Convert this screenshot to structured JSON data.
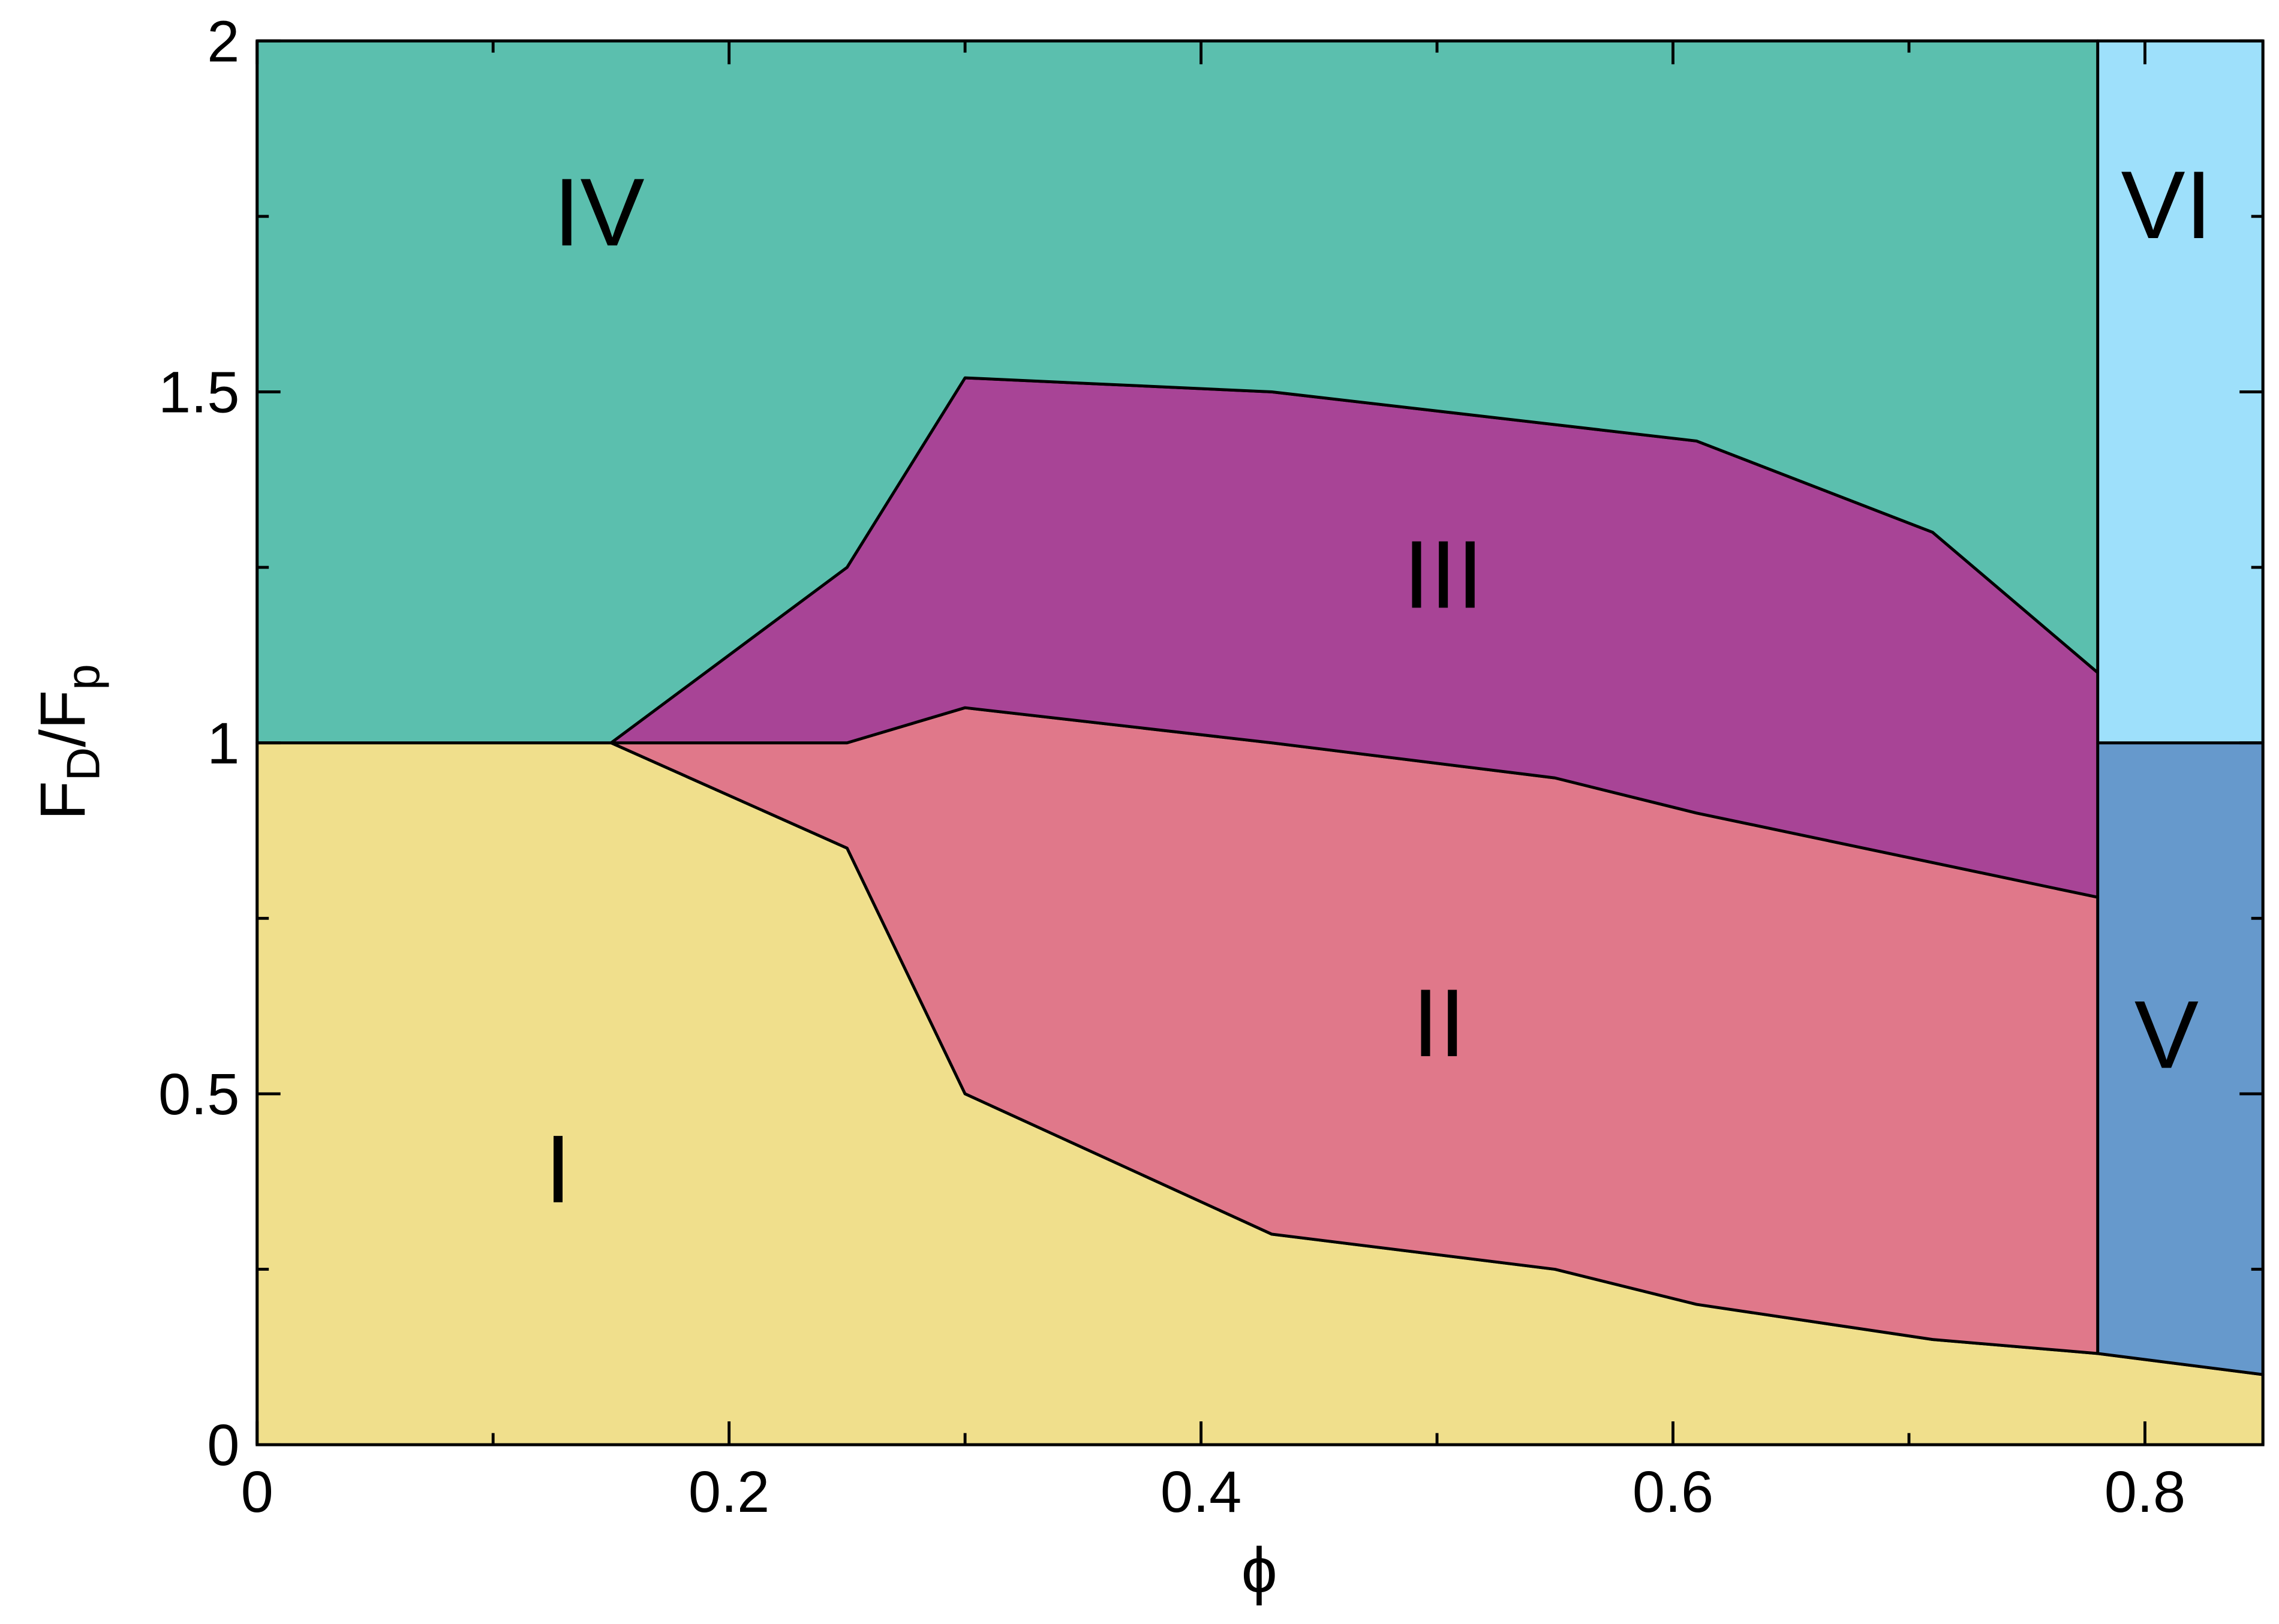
{
  "chart_data": {
    "type": "area",
    "xlabel": "ϕ",
    "ylabel": [
      "F",
      "D",
      "/F",
      "p"
    ],
    "xlim": [
      0,
      0.85
    ],
    "ylim": [
      0,
      2
    ],
    "xticks": [
      0,
      0.2,
      0.4,
      0.6,
      0.8
    ],
    "yticks": [
      0,
      0.5,
      1,
      1.5,
      2
    ],
    "xminorticks": [
      0.1,
      0.3,
      0.5,
      0.7
    ],
    "yminorticks": [
      0.25,
      0.75,
      1.25,
      1.75
    ],
    "series": [
      {
        "name": "I",
        "color": "#f0df8c",
        "x": [
          0,
          0,
          0.15,
          0.25,
          0.3,
          0.43,
          0.55,
          0.61,
          0.71,
          0.78,
          0.85,
          0.85
        ],
        "values": [
          0,
          1,
          1,
          0.85,
          0.5,
          0.3,
          0.25,
          0.2,
          0.15,
          0.13,
          0.1,
          0
        ]
      },
      {
        "name": "II",
        "color": "#e0788a",
        "x": [
          0.15,
          0.25,
          0.3,
          0.43,
          0.55,
          0.61,
          0.78,
          0.78,
          0.71,
          0.61,
          0.55,
          0.43,
          0.3,
          0.25
        ],
        "values": [
          1,
          1,
          1.05,
          1,
          0.95,
          0.9,
          0.78,
          0.13,
          0.15,
          0.2,
          0.25,
          0.3,
          0.5,
          0.85
        ]
      },
      {
        "name": "III",
        "color": "#a84496",
        "x": [
          0.15,
          0.25,
          0.3,
          0.43,
          0.61,
          0.71,
          0.78,
          0.78,
          0.61,
          0.55,
          0.43,
          0.3,
          0.25
        ],
        "values": [
          1,
          1.25,
          1.52,
          1.5,
          1.43,
          1.3,
          1.1,
          0.78,
          0.9,
          0.95,
          1,
          1.05,
          1
        ]
      },
      {
        "name": "IV",
        "color": "#5bbfae",
        "x": [
          0,
          0,
          0.78,
          0.78,
          0.71,
          0.61,
          0.43,
          0.3,
          0.25,
          0.15
        ],
        "values": [
          1,
          2,
          2,
          1.1,
          1.3,
          1.43,
          1.5,
          1.52,
          1.25,
          1
        ]
      },
      {
        "name": "V",
        "color": "#6699cc",
        "x": [
          0.78,
          0.78,
          0.85,
          0.85
        ],
        "values": [
          0.13,
          1,
          1,
          0.1
        ]
      },
      {
        "name": "VI",
        "color": "#9ee0fb",
        "x": [
          0.78,
          0.78,
          0.85,
          0.85
        ],
        "values": [
          1,
          2,
          2,
          1
        ]
      }
    ]
  }
}
